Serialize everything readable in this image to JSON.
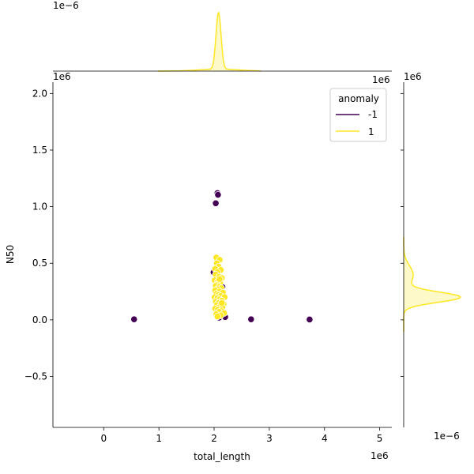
{
  "chart_data": {
    "type": "scatter",
    "xlabel": "total_length",
    "ylabel": "N50",
    "x_offset_label": "1e6",
    "y_offset_label": "1e6",
    "xlim": [
      -0.92,
      5.22
    ],
    "ylim": [
      -0.95,
      2.1
    ],
    "x_ticks": [
      0,
      1,
      2,
      3,
      4,
      5
    ],
    "y_ticks": [
      -0.5,
      0.0,
      0.5,
      1.0,
      1.5,
      2.0
    ],
    "x_tick_labels": [
      "0",
      "1",
      "2",
      "3",
      "4",
      "5"
    ],
    "y_tick_labels": [
      "−0.5",
      "0.0",
      "0.5",
      "1.0",
      "1.5",
      "2.0"
    ],
    "legend": {
      "title": "anomaly",
      "placement": "top-right",
      "entries": [
        {
          "label": "-1",
          "color": "#440154"
        },
        {
          "label": "1",
          "color": "#fde725"
        }
      ]
    },
    "series": [
      {
        "name": "-1",
        "color": "#440154",
        "points": [
          [
            0.55,
            0.005
          ],
          [
            2.06,
            1.12
          ],
          [
            2.07,
            1.105
          ],
          [
            2.03,
            1.03
          ],
          [
            1.99,
            0.42
          ],
          [
            2.15,
            0.29
          ],
          [
            2.09,
            0.02
          ],
          [
            2.2,
            0.025
          ],
          [
            2.67,
            0.005
          ],
          [
            3.73,
            0.003
          ],
          [
            2.12,
            0.27
          ],
          [
            2.04,
            0.35
          ]
        ]
      },
      {
        "name": "1",
        "color": "#fde725",
        "points": [
          [
            2.04,
            0.55
          ],
          [
            2.1,
            0.53
          ],
          [
            2.05,
            0.5
          ],
          [
            2.08,
            0.47
          ],
          [
            2.02,
            0.45
          ],
          [
            2.12,
            0.44
          ],
          [
            2.06,
            0.42
          ],
          [
            2.03,
            0.4
          ],
          [
            2.09,
            0.38
          ],
          [
            2.14,
            0.37
          ],
          [
            2.01,
            0.35
          ],
          [
            2.07,
            0.34
          ],
          [
            2.11,
            0.33
          ],
          [
            2.05,
            0.31
          ],
          [
            2.03,
            0.3
          ],
          [
            2.09,
            0.29
          ],
          [
            2.13,
            0.28
          ],
          [
            2.06,
            0.27
          ],
          [
            2.02,
            0.26
          ],
          [
            2.1,
            0.25
          ],
          [
            2.16,
            0.24
          ],
          [
            2.04,
            0.23
          ],
          [
            2.08,
            0.22
          ],
          [
            2.12,
            0.21
          ],
          [
            2.19,
            0.2
          ],
          [
            2.01,
            0.2
          ],
          [
            2.06,
            0.19
          ],
          [
            2.1,
            0.18
          ],
          [
            2.14,
            0.17
          ],
          [
            2.03,
            0.16
          ],
          [
            2.08,
            0.15
          ],
          [
            2.17,
            0.14
          ],
          [
            2.05,
            0.13
          ],
          [
            2.11,
            0.12
          ],
          [
            2.15,
            0.11
          ],
          [
            2.02,
            0.1
          ],
          [
            2.07,
            0.09
          ],
          [
            2.13,
            0.08
          ],
          [
            2.09,
            0.07
          ],
          [
            2.18,
            0.06
          ],
          [
            2.04,
            0.05
          ],
          [
            2.12,
            0.04
          ],
          [
            2.06,
            0.03
          ],
          [
            2.14,
            0.15
          ],
          [
            2.1,
            0.36
          ]
        ]
      }
    ],
    "top_marginal": {
      "type": "kde",
      "axis_offset_label": "1e−6",
      "series": [
        {
          "name": "1",
          "color": "#fde725",
          "peak_x": 2.08
        }
      ]
    },
    "right_marginal": {
      "type": "kde",
      "axis_offset_label": "1e−6",
      "series": [
        {
          "name": "1",
          "color": "#fde725",
          "peak_y": 0.2
        }
      ]
    }
  }
}
